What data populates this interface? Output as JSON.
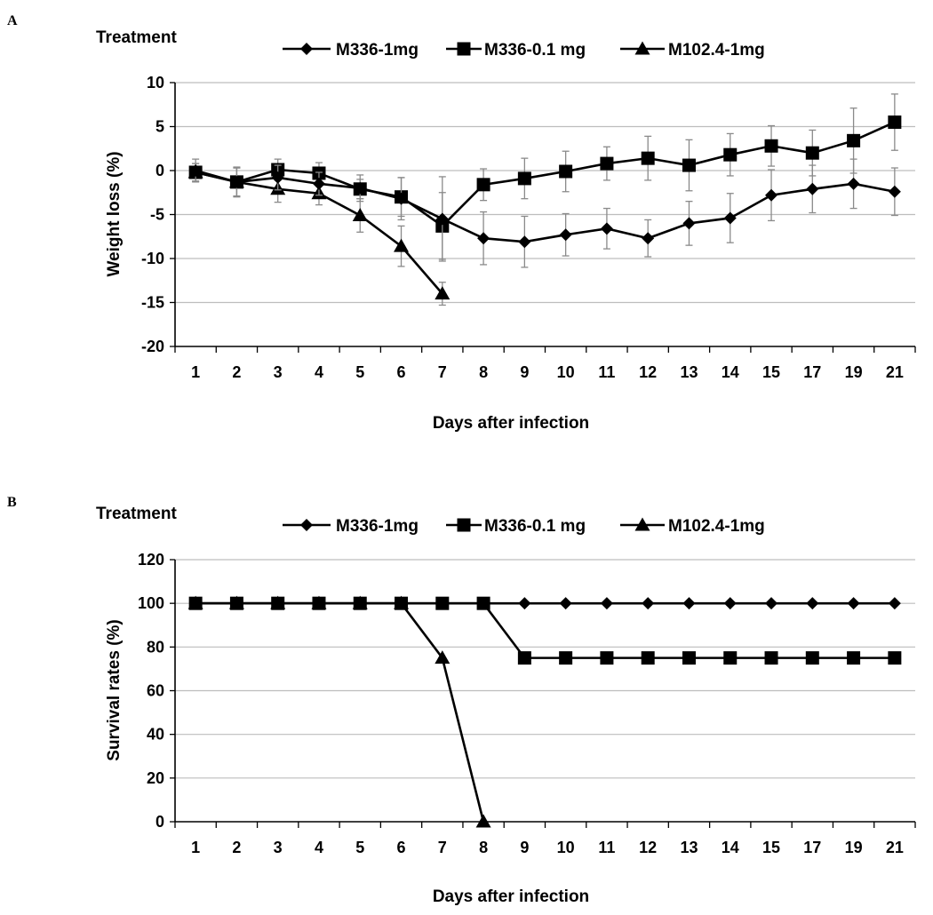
{
  "chart_data": [
    {
      "type": "line",
      "panel": "A",
      "legend_title": "Treatment",
      "categories": [
        "1",
        "2",
        "3",
        "4",
        "5",
        "6",
        "7",
        "8",
        "9",
        "10",
        "11",
        "12",
        "13",
        "14",
        "15",
        "17",
        "19",
        "21"
      ],
      "ylabel": "Weight loss (%)",
      "xlabel": "Days after infection",
      "ylim": [
        -20,
        10
      ],
      "yticks": [
        10,
        5,
        0,
        -5,
        -10,
        -15,
        -20
      ],
      "grid": true,
      "legend_position": "top",
      "series": [
        {
          "name": "M336-1mg",
          "marker": "diamond",
          "values": [
            0,
            -1.3,
            -0.8,
            -1.5,
            -2.0,
            -3.2,
            -5.5,
            -7.7,
            -8.1,
            -7.3,
            -6.6,
            -7.7,
            -6.0,
            -5.4,
            -2.8,
            -2.1,
            -1.5,
            -2.4
          ],
          "errors": [
            1.3,
            1.6,
            1.4,
            1.3,
            1.5,
            2.4,
            4.8,
            3.0,
            2.9,
            2.4,
            2.3,
            2.1,
            2.5,
            2.8,
            2.9,
            2.7,
            2.8,
            2.7
          ]
        },
        {
          "name": "M336-0.1 mg",
          "marker": "square",
          "values": [
            -0.2,
            -1.3,
            0.1,
            -0.3,
            -2.1,
            -3.0,
            -6.3,
            -1.6,
            -0.9,
            -0.1,
            0.8,
            1.4,
            0.6,
            1.8,
            2.8,
            2.0,
            3.4,
            5.5
          ],
          "errors": [
            1.0,
            1.7,
            1.2,
            1.2,
            1.1,
            2.2,
            3.8,
            1.8,
            2.3,
            2.3,
            1.9,
            2.5,
            2.9,
            2.4,
            2.3,
            2.6,
            3.7,
            3.2
          ]
        },
        {
          "name": "M102.4-1mg",
          "marker": "triangle",
          "values": [
            -0.2,
            -1.3,
            -2.1,
            -2.6,
            -5.1,
            -8.6,
            -14.0,
            null,
            null,
            null,
            null,
            null,
            null,
            null,
            null,
            null,
            null,
            null
          ],
          "errors": [
            1.0,
            1.6,
            1.5,
            1.3,
            1.9,
            2.3,
            1.3,
            null,
            null,
            null,
            null,
            null,
            null,
            null,
            null,
            null,
            null,
            null
          ]
        }
      ]
    },
    {
      "type": "line",
      "panel": "B",
      "legend_title": "Treatment",
      "categories": [
        "1",
        "2",
        "3",
        "4",
        "5",
        "6",
        "7",
        "8",
        "9",
        "10",
        "11",
        "12",
        "13",
        "14",
        "15",
        "17",
        "19",
        "21"
      ],
      "ylabel": "Survival rates (%)",
      "xlabel": "Days after infection",
      "ylim": [
        0,
        120
      ],
      "yticks": [
        120,
        100,
        80,
        60,
        40,
        20,
        0
      ],
      "grid": true,
      "legend_position": "top",
      "series": [
        {
          "name": "M336-1mg",
          "marker": "diamond",
          "values": [
            100,
            100,
            100,
            100,
            100,
            100,
            100,
            100,
            100,
            100,
            100,
            100,
            100,
            100,
            100,
            100,
            100,
            100
          ]
        },
        {
          "name": "M336-0.1 mg",
          "marker": "square",
          "values": [
            100,
            100,
            100,
            100,
            100,
            100,
            100,
            100,
            75,
            75,
            75,
            75,
            75,
            75,
            75,
            75,
            75,
            75
          ]
        },
        {
          "name": "M102.4-1mg",
          "marker": "triangle",
          "values": [
            100,
            100,
            100,
            100,
            100,
            100,
            75,
            0,
            null,
            null,
            null,
            null,
            null,
            null,
            null,
            null,
            null,
            null
          ]
        }
      ]
    }
  ]
}
